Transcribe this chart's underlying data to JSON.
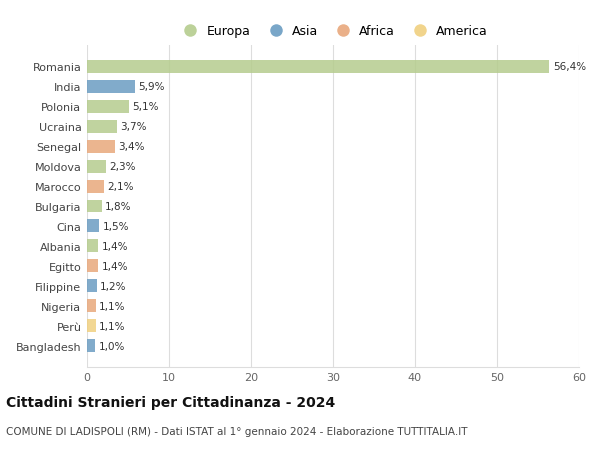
{
  "countries": [
    "Romania",
    "India",
    "Polonia",
    "Ucraina",
    "Senegal",
    "Moldova",
    "Marocco",
    "Bulgaria",
    "Cina",
    "Albania",
    "Egitto",
    "Filippine",
    "Nigeria",
    "Perù",
    "Bangladesh"
  ],
  "values": [
    56.4,
    5.9,
    5.1,
    3.7,
    3.4,
    2.3,
    2.1,
    1.8,
    1.5,
    1.4,
    1.4,
    1.2,
    1.1,
    1.1,
    1.0
  ],
  "labels": [
    "56,4%",
    "5,9%",
    "5,1%",
    "3,7%",
    "3,4%",
    "2,3%",
    "2,1%",
    "1,8%",
    "1,5%",
    "1,4%",
    "1,4%",
    "1,2%",
    "1,1%",
    "1,1%",
    "1,0%"
  ],
  "continents": [
    "Europa",
    "Asia",
    "Europa",
    "Europa",
    "Africa",
    "Europa",
    "Africa",
    "Europa",
    "Asia",
    "Europa",
    "Africa",
    "Asia",
    "Africa",
    "America",
    "Asia"
  ],
  "continent_colors": {
    "Europa": "#b5cc8e",
    "Asia": "#6b9dc2",
    "Africa": "#e8a87c",
    "America": "#f0d080"
  },
  "legend_order": [
    "Europa",
    "Asia",
    "Africa",
    "America"
  ],
  "title": "Cittadini Stranieri per Cittadinanza - 2024",
  "subtitle": "COMUNE DI LADISPOLI (RM) - Dati ISTAT al 1° gennaio 2024 - Elaborazione TUTTITALIA.IT",
  "xlim": [
    0,
    60
  ],
  "xticks": [
    0,
    10,
    20,
    30,
    40,
    50,
    60
  ],
  "background_color": "#ffffff",
  "grid_color": "#dddddd"
}
